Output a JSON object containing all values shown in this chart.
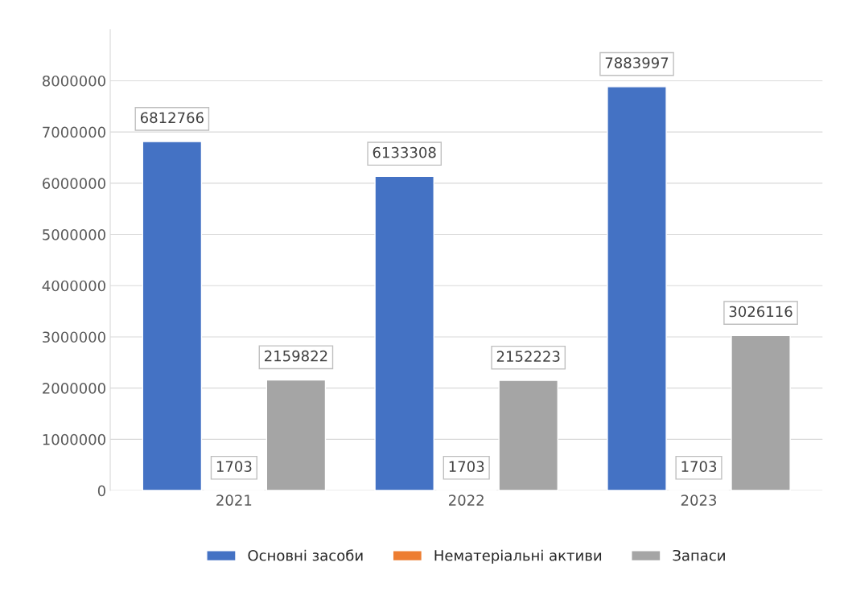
{
  "chart_data": {
    "type": "bar",
    "categories": [
      "2021",
      "2022",
      "2023"
    ],
    "series": [
      {
        "name": "Основні засоби",
        "color": "#4472c4",
        "values": [
          6812766,
          6133308,
          7883997
        ]
      },
      {
        "name": "Нематеріальні активи",
        "color": "#ed7d31",
        "values": [
          1703,
          1703,
          1703
        ]
      },
      {
        "name": "Запаси",
        "color": "#a5a5a5",
        "values": [
          2159822,
          2152223,
          3026116
        ]
      }
    ],
    "ylim": [
      0,
      9000000
    ],
    "yticks": [
      0,
      1000000,
      2000000,
      3000000,
      4000000,
      5000000,
      6000000,
      7000000,
      8000000
    ],
    "grid": "y",
    "legend": "bottom",
    "data_labels": true
  }
}
